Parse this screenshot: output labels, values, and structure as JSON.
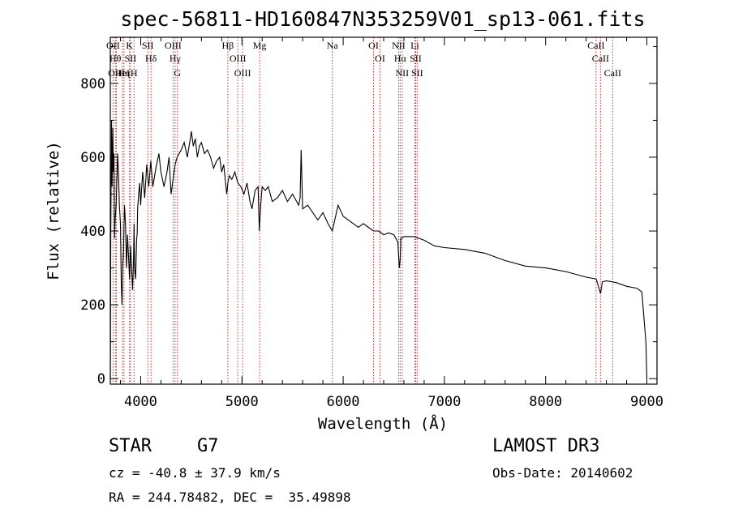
{
  "chart_data": {
    "type": "line",
    "title": "spec-56811-HD160847N353259V01_sp13-061.fits",
    "xlabel": "Wavelength (Å)",
    "ylabel": "Flux (relative)",
    "xlim": [
      3700,
      9100
    ],
    "ylim": [
      -15,
      925
    ],
    "x_ticks": [
      4000,
      5000,
      6000,
      7000,
      8000,
      9000
    ],
    "y_ticks": [
      0,
      200,
      400,
      600,
      800
    ],
    "grid": false,
    "series": [
      {
        "name": "spectrum",
        "x": [
          3700,
          3705,
          3712,
          3718,
          3725,
          3730,
          3736,
          3742,
          3750,
          3758,
          3765,
          3772,
          3780,
          3790,
          3800,
          3808,
          3815,
          3822,
          3830,
          3840,
          3850,
          3860,
          3870,
          3880,
          3890,
          3900,
          3910,
          3920,
          3930,
          3935,
          3940,
          3950,
          3960,
          3965,
          3970,
          3980,
          3990,
          4000,
          4020,
          4040,
          4060,
          4080,
          4100,
          4120,
          4150,
          4180,
          4200,
          4230,
          4260,
          4280,
          4300,
          4320,
          4340,
          4360,
          4380,
          4400,
          4430,
          4460,
          4490,
          4500,
          4520,
          4540,
          4560,
          4580,
          4600,
          4630,
          4660,
          4690,
          4720,
          4750,
          4780,
          4800,
          4820,
          4850,
          4861,
          4875,
          4900,
          4930,
          4960,
          4990,
          5020,
          5050,
          5080,
          5100,
          5130,
          5160,
          5172,
          5185,
          5200,
          5230,
          5260,
          5300,
          5350,
          5400,
          5450,
          5500,
          5560,
          5575,
          5585,
          5600,
          5650,
          5700,
          5750,
          5800,
          5850,
          5893,
          5950,
          6000,
          6050,
          6100,
          6150,
          6200,
          6250,
          6300,
          6350,
          6400,
          6450,
          6500,
          6540,
          6555,
          6563,
          6570,
          6600,
          6700,
          6800,
          6900,
          7000,
          7200,
          7400,
          7600,
          7800,
          8000,
          8200,
          8400,
          8500,
          8542,
          8560,
          8600,
          8700,
          8800,
          8900,
          8950,
          8990,
          9000
        ],
        "values": [
          0,
          400,
          700,
          520,
          680,
          560,
          610,
          380,
          440,
          470,
          540,
          610,
          560,
          470,
          420,
          260,
          200,
          300,
          340,
          470,
          420,
          300,
          390,
          330,
          270,
          360,
          300,
          240,
          330,
          420,
          300,
          270,
          380,
          390,
          460,
          500,
          530,
          470,
          560,
          490,
          580,
          520,
          590,
          520,
          570,
          610,
          560,
          520,
          560,
          600,
          500,
          540,
          580,
          600,
          610,
          620,
          640,
          600,
          650,
          670,
          630,
          650,
          600,
          630,
          640,
          610,
          620,
          600,
          570,
          590,
          600,
          560,
          580,
          500,
          530,
          550,
          540,
          560,
          530,
          520,
          500,
          530,
          480,
          460,
          510,
          520,
          400,
          470,
          520,
          510,
          520,
          480,
          490,
          510,
          480,
          500,
          470,
          490,
          620,
          460,
          470,
          450,
          430,
          450,
          420,
          400,
          470,
          440,
          430,
          420,
          410,
          420,
          410,
          400,
          400,
          390,
          395,
          390,
          370,
          300,
          320,
          380,
          385,
          385,
          375,
          360,
          355,
          350,
          340,
          320,
          305,
          300,
          290,
          275,
          270,
          230,
          262,
          265,
          260,
          250,
          245,
          235,
          100,
          0
        ]
      }
    ],
    "lines": [
      {
        "label": "OII",
        "x": 3727
      },
      {
        "label": "Hθ",
        "x": 3750
      },
      {
        "label": "OIII",
        "x": 3760
      },
      {
        "label": "HeI",
        "x": 3820
      },
      {
        "label": "Hη",
        "x": 3835
      },
      {
        "label": "K",
        "x": 3889
      },
      {
        "label": "SII",
        "x": 3900
      },
      {
        "label": "H",
        "x": 3934
      },
      {
        "label": "Hδ",
        "x": 4102
      },
      {
        "label": "SII",
        "x": 4070
      },
      {
        "label": "OIII",
        "x": 4320
      },
      {
        "label": "Hγ",
        "x": 4340
      },
      {
        "label": "G",
        "x": 4363
      },
      {
        "label": "Hβ",
        "x": 4861
      },
      {
        "label": "OIII",
        "x": 4959
      },
      {
        "label": "OIII",
        "x": 5007
      },
      {
        "label": "Mg",
        "x": 5175
      },
      {
        "label": "Na",
        "x": 5893
      },
      {
        "label": "OI",
        "x": 6300
      },
      {
        "label": "OI",
        "x": 6364
      },
      {
        "label": "Hα",
        "x": 6563
      },
      {
        "label": "NII",
        "x": 6548
      },
      {
        "label": "NII",
        "x": 6583
      },
      {
        "label": "SII",
        "x": 6716
      },
      {
        "label": "Li",
        "x": 6708
      },
      {
        "label": "SII",
        "x": 6731
      },
      {
        "label": "CaII",
        "x": 8498
      },
      {
        "label": "CaII",
        "x": 8542
      },
      {
        "label": "CaII",
        "x": 8662
      }
    ]
  },
  "info": {
    "object_class": "STAR",
    "subclass": "G7",
    "survey": "LAMOST DR3",
    "redshift_text": "cz = -40.8 ± 37.9 km/s",
    "obs_date_text": "Obs-Date: 20140602",
    "coords_text": "RA = 244.78482, DEC =  35.49898"
  },
  "colors": {
    "spectrum": "#000000",
    "line_marker": "#cc3333",
    "axis": "#000000"
  }
}
